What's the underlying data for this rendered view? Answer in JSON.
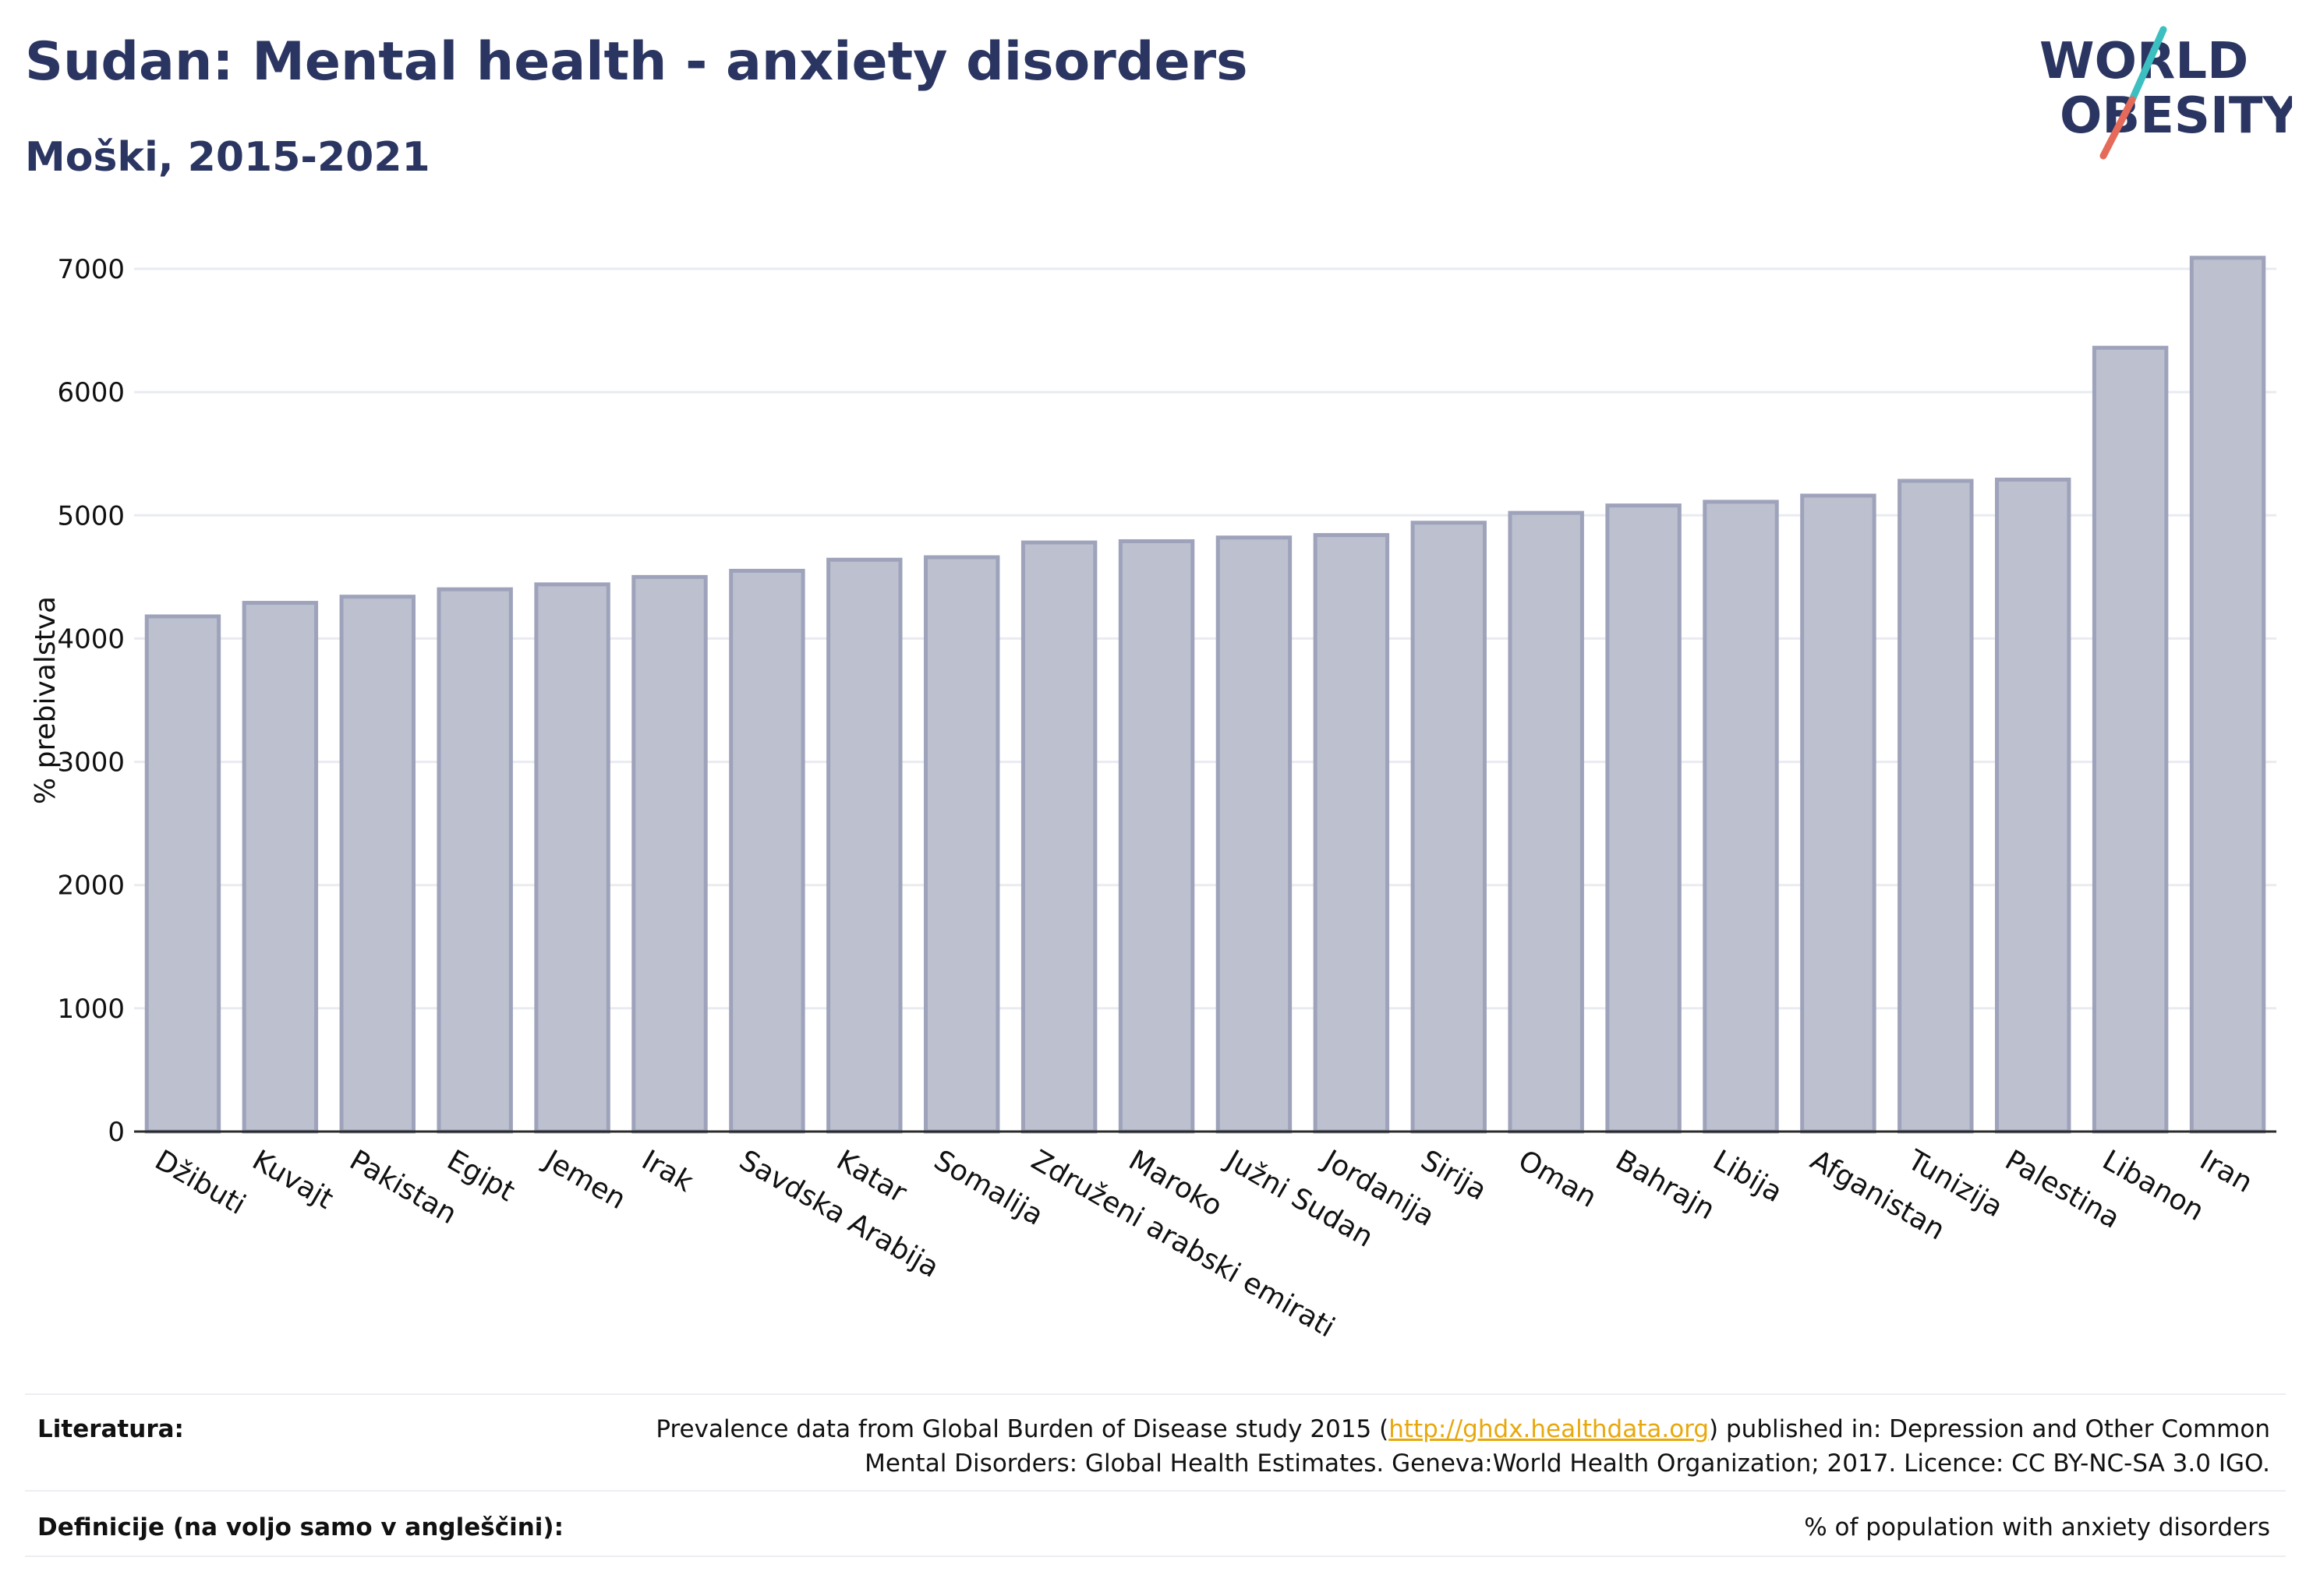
{
  "header": {
    "title": "Sudan: Mental health - anxiety disorders",
    "subtitle": "Moški, 2015-2021"
  },
  "logo": {
    "line1": "WORLD",
    "line2": "OBESITY",
    "slash_colors": [
      "#3cbfc0",
      "#e56a5a"
    ],
    "text_color": "#2b3561"
  },
  "chart_data": {
    "type": "bar",
    "ylabel": "% prebivalstva",
    "ylim": [
      0,
      7000
    ],
    "yticks": [
      0,
      1000,
      2000,
      3000,
      4000,
      5000,
      6000,
      7000
    ],
    "grid": true,
    "bar_color": "#bcc0cf",
    "bar_edge_color": "#9ea3bb",
    "categories": [
      "Džibuti",
      "Kuvajt",
      "Pakistan",
      "Egipt",
      "Jemen",
      "Irak",
      "Savdska Arabija",
      "Katar",
      "Somalija",
      "Združeni arabski emirati",
      "Maroko",
      "Južni Sudan",
      "Jordanija",
      "Sirija",
      "Oman",
      "Bahrajn",
      "Libija",
      "Afganistan",
      "Tunizija",
      "Palestina",
      "Libanon",
      "Iran"
    ],
    "values": [
      4180,
      4290,
      4340,
      4400,
      4440,
      4500,
      4550,
      4640,
      4660,
      4780,
      4790,
      4820,
      4840,
      4940,
      5020,
      5080,
      5110,
      5160,
      5280,
      5290,
      6360,
      7090
    ]
  },
  "footer": {
    "literature_label": "Literatura:",
    "literature_line1_before": "Prevalence data from Global Burden of Disease study 2015 (",
    "literature_link": "http://ghdx.healthdata.org",
    "literature_line1_after": ") published in: Depression and Other Common",
    "literature_line2": "Mental Disorders: Global Health Estimates. Geneva:World Health Organization; 2017. Licence: CC BY-NC-SA 3.0 IGO.",
    "definitions_label": "Definicije (na voljo samo v angleščini):",
    "definitions_text": "% of population with anxiety disorders"
  }
}
